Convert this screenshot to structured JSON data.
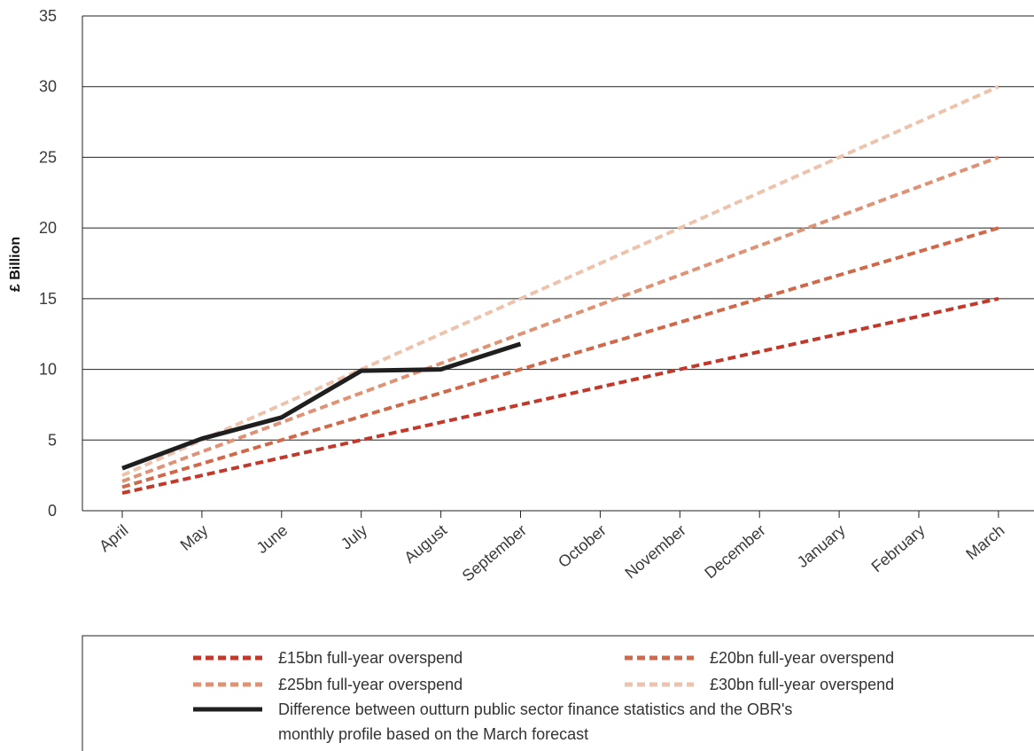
{
  "chart_data": {
    "type": "line",
    "title": "",
    "xlabel": "",
    "ylabel": "£ Billion",
    "ylim": [
      0,
      35
    ],
    "yticks": [
      0,
      5,
      10,
      15,
      20,
      25,
      30,
      35
    ],
    "grid": "horizontal",
    "legend_position": "bottom",
    "categories": [
      "April",
      "May",
      "June",
      "July",
      "August",
      "September",
      "October",
      "November",
      "December",
      "January",
      "February",
      "March"
    ],
    "series": [
      {
        "name": "£15bn full-year overspend",
        "color": "#c0392b",
        "style": "dashed",
        "values": [
          1.25,
          2.5,
          3.75,
          5,
          6.25,
          7.5,
          8.75,
          10,
          11.25,
          12.5,
          13.75,
          15
        ]
      },
      {
        "name": "£20bn full-year overspend",
        "color": "#d0684a",
        "style": "dashed",
        "values": [
          1.67,
          3.33,
          5,
          6.67,
          8.33,
          10,
          11.67,
          13.33,
          15,
          16.67,
          18.33,
          20
        ]
      },
      {
        "name": "£25bn full-year overspend",
        "color": "#df9376",
        "style": "dashed",
        "values": [
          2.08,
          4.17,
          6.25,
          8.33,
          10.42,
          12.5,
          14.58,
          16.67,
          18.75,
          20.83,
          22.92,
          25
        ]
      },
      {
        "name": "£30bn full-year overspend",
        "color": "#edc3ad",
        "style": "dashed",
        "values": [
          2.5,
          5,
          7.5,
          10,
          12.5,
          15,
          17.5,
          20,
          22.5,
          25,
          27.5,
          30
        ]
      },
      {
        "name": "Difference between outturn public sector finance statistics and the OBR's monthly profile based on the March forecast",
        "name_lines": [
          "Difference between outturn public sector finance statistics and the OBR's",
          "monthly profile based on the March forecast"
        ],
        "color": "#1f1f1f",
        "style": "solid",
        "values": [
          3.0,
          5.1,
          6.6,
          9.9,
          10.0,
          11.8,
          null,
          null,
          null,
          null,
          null,
          null
        ]
      }
    ]
  }
}
